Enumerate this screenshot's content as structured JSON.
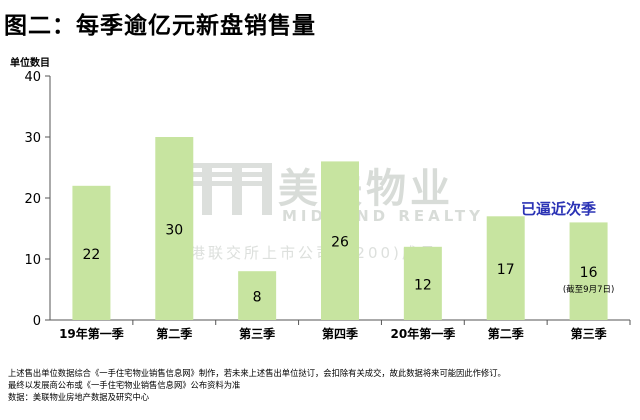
{
  "title": "图二：每季逾亿元新盘销售量",
  "unit_label": "单位数目",
  "annotation": "已逼近次季",
  "value_note": "(截至9月7日)",
  "watermark": {
    "name_cn": "美联物业",
    "name_en": "MIDLAND REALTY",
    "tagline": "香港联交所上市公司(1200)成员"
  },
  "notes": [
    "上述售出单位数据综合《一手住宅物业销售信息网》制作，若未来上述售出单位挞订，会扣除有关成交，故此数据将来可能因此作修订。",
    "最终以发展商公布或《一手住宅物业销售信息网》公布资料为准",
    "数据：美联物业房地产数据及研究中心"
  ],
  "colors": {
    "bar": "#c7e4a0",
    "annotation": "#2b33b5",
    "grid": "#d9d9d9"
  },
  "chart_data": {
    "type": "bar",
    "categories": [
      "19年第一季",
      "第二季",
      "第三季",
      "第四季",
      "20年第一季",
      "第二季",
      "第三季"
    ],
    "values": [
      22,
      30,
      8,
      26,
      12,
      17,
      16
    ],
    "ylim": [
      0,
      40
    ],
    "yticks": [
      0,
      10,
      20,
      30,
      40
    ],
    "ylabel": "单位数目",
    "grid": true
  }
}
